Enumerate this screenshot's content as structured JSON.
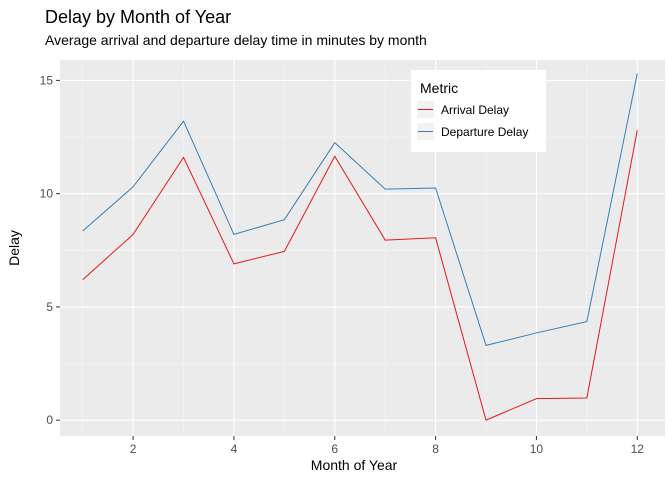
{
  "chart_data": {
    "type": "line",
    "title": "Delay by Month of Year",
    "subtitle": "Average arrival and departure delay time in minutes by month",
    "xlabel": "Month of Year",
    "ylabel": "Delay",
    "x": [
      1,
      2,
      3,
      4,
      5,
      6,
      7,
      8,
      9,
      10,
      11,
      12
    ],
    "xlim": [
      0.55,
      12.55
    ],
    "ylim": [
      -0.7,
      15.9
    ],
    "x_ticks": [
      2,
      4,
      6,
      8,
      10,
      12
    ],
    "y_ticks": [
      0,
      5,
      10,
      15
    ],
    "grid": true,
    "legend": {
      "title": "Metric",
      "placement": "top-right"
    },
    "series": [
      {
        "name": "Arrival Delay",
        "color": "#e41a1c",
        "values": [
          6.2,
          8.2,
          11.6,
          6.9,
          7.45,
          11.65,
          7.95,
          8.05,
          0.0,
          0.95,
          0.98,
          12.8
        ]
      },
      {
        "name": "Departure Delay",
        "color": "#377eb8",
        "values": [
          8.35,
          10.3,
          13.2,
          8.2,
          8.85,
          12.25,
          10.2,
          10.25,
          3.3,
          3.85,
          4.35,
          15.3
        ]
      }
    ]
  }
}
